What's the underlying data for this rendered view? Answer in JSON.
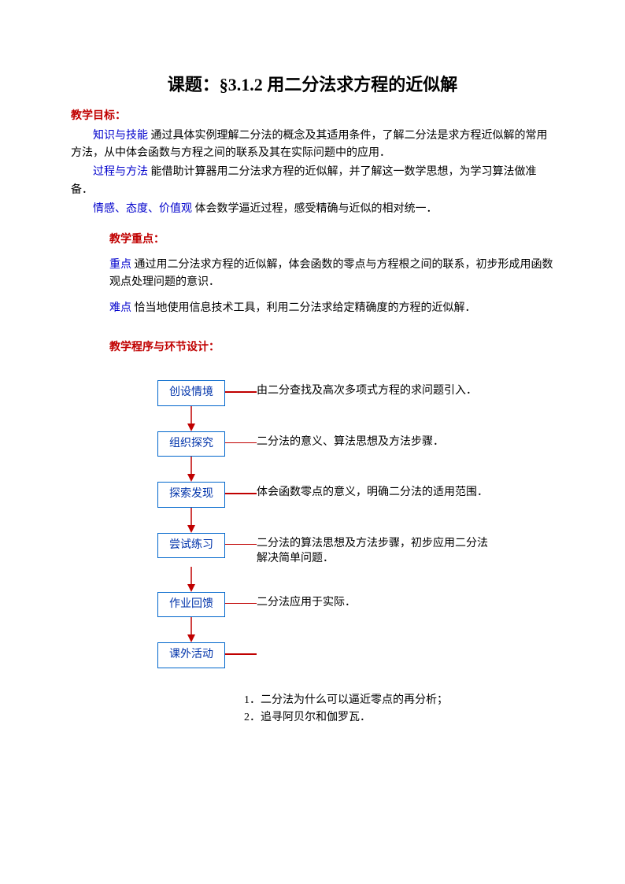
{
  "title": "课题：§3.1.2 用二分法求方程的近似解",
  "goals": {
    "header": "教学目标：",
    "knowledge_label": "知识与技能",
    "knowledge_text": "  通过具体实例理解二分法的概念及其适用条件，了解二分法是求方程近似解的常用方法，从中体会函数与方程之间的联系及其在实际问题中的应用．",
    "process_label": "过程与方法",
    "process_text": "  能借助计算器用二分法求方程的近似解，并了解这一数学思想，为学习算法做准备．",
    "emotion_label": "情感、态度、价值观",
    "emotion_text": "  体会数学逼近过程，感受精确与近似的相对统一．"
  },
  "keypoints": {
    "header": "教学重点：",
    "key_label": "重点",
    "key_text": "  通过用二分法求方程的近似解，体会函数的零点与方程根之间的联系，初步形成用函数观点处理问题的意识．",
    "diff_label": "难点",
    "diff_text": "  恰当地使用信息技术工具，利用二分法求给定精确度的方程的近似解．"
  },
  "procedure_header": "教学程序与环节设计：",
  "flow": {
    "nodes": [
      {
        "label": "创设情境",
        "desc": "由二分查找及高次多项式方程的求问题引入．"
      },
      {
        "label": "组织探究",
        "desc": "二分法的意义、算法思想及方法步骤．"
      },
      {
        "label": "探索发现",
        "desc": "体会函数零点的意义，明确二分法的适用范围．"
      },
      {
        "label": "尝试练习",
        "desc": "二分法的算法思想及方法步骤，初步应用二分法解决简单问题．"
      },
      {
        "label": "作业回馈",
        "desc": "二分法应用于实际．"
      },
      {
        "label": "课外活动",
        "desc": ""
      }
    ],
    "box_border_color": "#0066cc",
    "box_text_color": "#0033aa",
    "arrow_color": "#c00000",
    "connector_color": "#c00000"
  },
  "footnotes": [
    "1．二分法为什么可以逼近零点的再分析；",
    "2．追寻阿贝尔和伽罗瓦．"
  ]
}
